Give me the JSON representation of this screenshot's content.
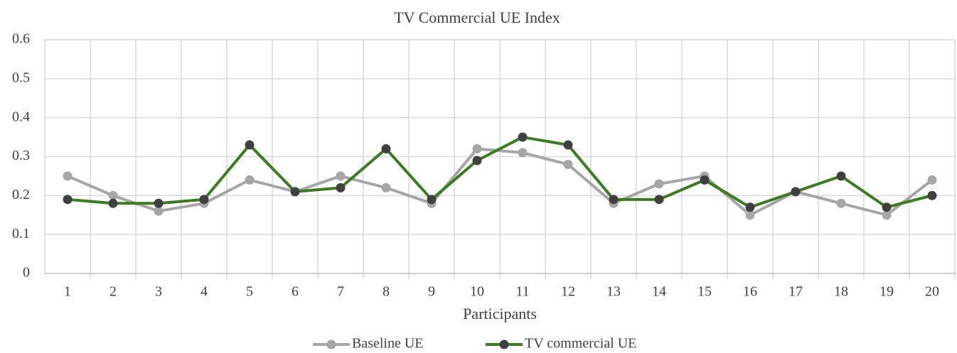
{
  "chart_data": {
    "type": "line",
    "title": "TV Commercial UE Index",
    "x_label": "Participants",
    "categories": [
      "1",
      "2",
      "3",
      "4",
      "5",
      "6",
      "7",
      "8",
      "9",
      "10",
      "11",
      "12",
      "13",
      "14",
      "15",
      "16",
      "17",
      "18",
      "19",
      "20"
    ],
    "series": [
      {
        "name": "Baseline UE",
        "color": "#a6a6a6",
        "marker_color": "#a6a6a6",
        "values": [
          0.25,
          0.2,
          0.16,
          0.18,
          0.24,
          0.21,
          0.25,
          0.22,
          0.18,
          0.32,
          0.31,
          0.28,
          0.18,
          0.23,
          0.25,
          0.15,
          0.21,
          0.18,
          0.15,
          0.24
        ]
      },
      {
        "name": "TV commercial UE",
        "color": "#3a7d1e",
        "marker_color": "#404040",
        "values": [
          0.19,
          0.18,
          0.18,
          0.19,
          0.33,
          0.21,
          0.22,
          0.32,
          0.19,
          0.29,
          0.35,
          0.33,
          0.19,
          0.19,
          0.24,
          0.17,
          0.21,
          0.25,
          0.17,
          0.2
        ]
      }
    ],
    "ylim": [
      0,
      0.6
    ],
    "yticks": [
      0,
      0.1,
      0.2,
      0.3,
      0.4,
      0.5,
      0.6
    ],
    "grid": true,
    "legend": "bottom"
  }
}
